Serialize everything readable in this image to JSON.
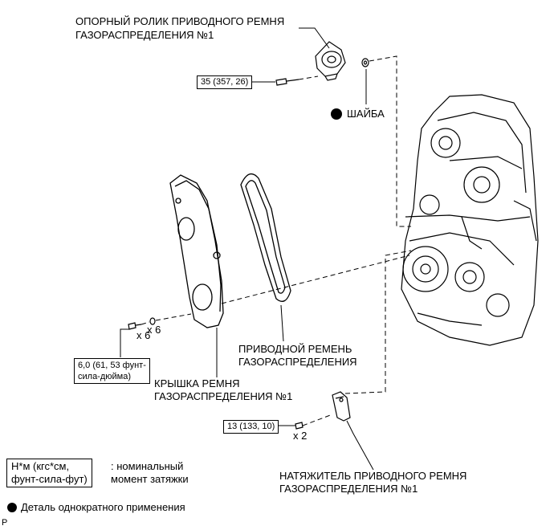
{
  "labels": {
    "idler_line1": "ОПОРНЫЙ РОЛИК ПРИВОДНОГО РЕМНЯ",
    "idler_line2": "ГАЗОРАСПРЕДЕЛЕНИЯ №1",
    "washer": "ШАЙБА",
    "belt_line1": "ПРИВОДНОЙ РЕМЕНЬ",
    "belt_line2": "ГАЗОРАСПРЕДЕЛЕНИЯ",
    "cover_line1": "КРЫШКА РЕМНЯ",
    "cover_line2": "ГАЗОРАСПРЕДЕЛЕНИЯ №1",
    "tensioner_line1": "НАТЯЖИТЕЛЬ ПРИВОДНОГО РЕМНЯ",
    "tensioner_line2": "ГАЗОРАСПРЕДЕЛЕНИЯ №1"
  },
  "torque": {
    "idler": "35 (357, 26)",
    "cover_line1": "6,0 (61, 53 фунт-",
    "cover_line2": "сила-дюйма)",
    "tensioner": "13 (133, 10)"
  },
  "quantities": {
    "cover_bolts": "x 6",
    "cover_washers": "x 6",
    "tensioner_bolts": "x 2"
  },
  "legend": {
    "unit_line1": "Н*м (кгс*см,",
    "unit_line2": "фунт-сила-фут)",
    "torque_desc_line1": ": номинальный",
    "torque_desc_line2": "момент затяжки",
    "single_use": "Деталь однократного применения"
  },
  "figure_code": "P",
  "icons": {
    "single_use_mark": "black-dot-icon"
  }
}
